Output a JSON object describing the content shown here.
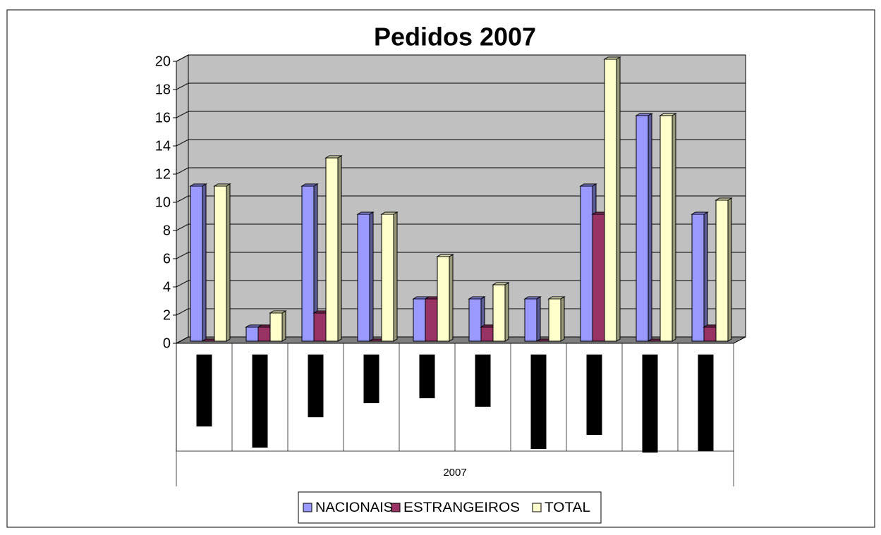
{
  "chart_data": {
    "type": "bar",
    "title": "Pedidos 2007",
    "categories": [
      null,
      null,
      null,
      null,
      null,
      null,
      null,
      null,
      null,
      null
    ],
    "group_label": "2007",
    "series": [
      {
        "name": "NACIONAIS",
        "color": "#9999ff",
        "values": [
          11,
          1,
          11,
          9,
          3,
          3,
          3,
          11,
          16,
          9
        ]
      },
      {
        "name": "ESTRANGEIROS",
        "color": "#993366",
        "values": [
          0,
          1,
          2,
          0,
          3,
          1,
          0,
          9,
          0,
          1
        ]
      },
      {
        "name": "TOTAL",
        "color": "#ffffcc",
        "values": [
          11,
          2,
          13,
          9,
          6,
          4,
          3,
          20,
          16,
          10
        ]
      }
    ],
    "ylim": [
      0,
      20
    ],
    "yticks": [
      0,
      2,
      4,
      6,
      8,
      10,
      12,
      14,
      16,
      18,
      20
    ],
    "grid": true,
    "legend": "bottom"
  }
}
